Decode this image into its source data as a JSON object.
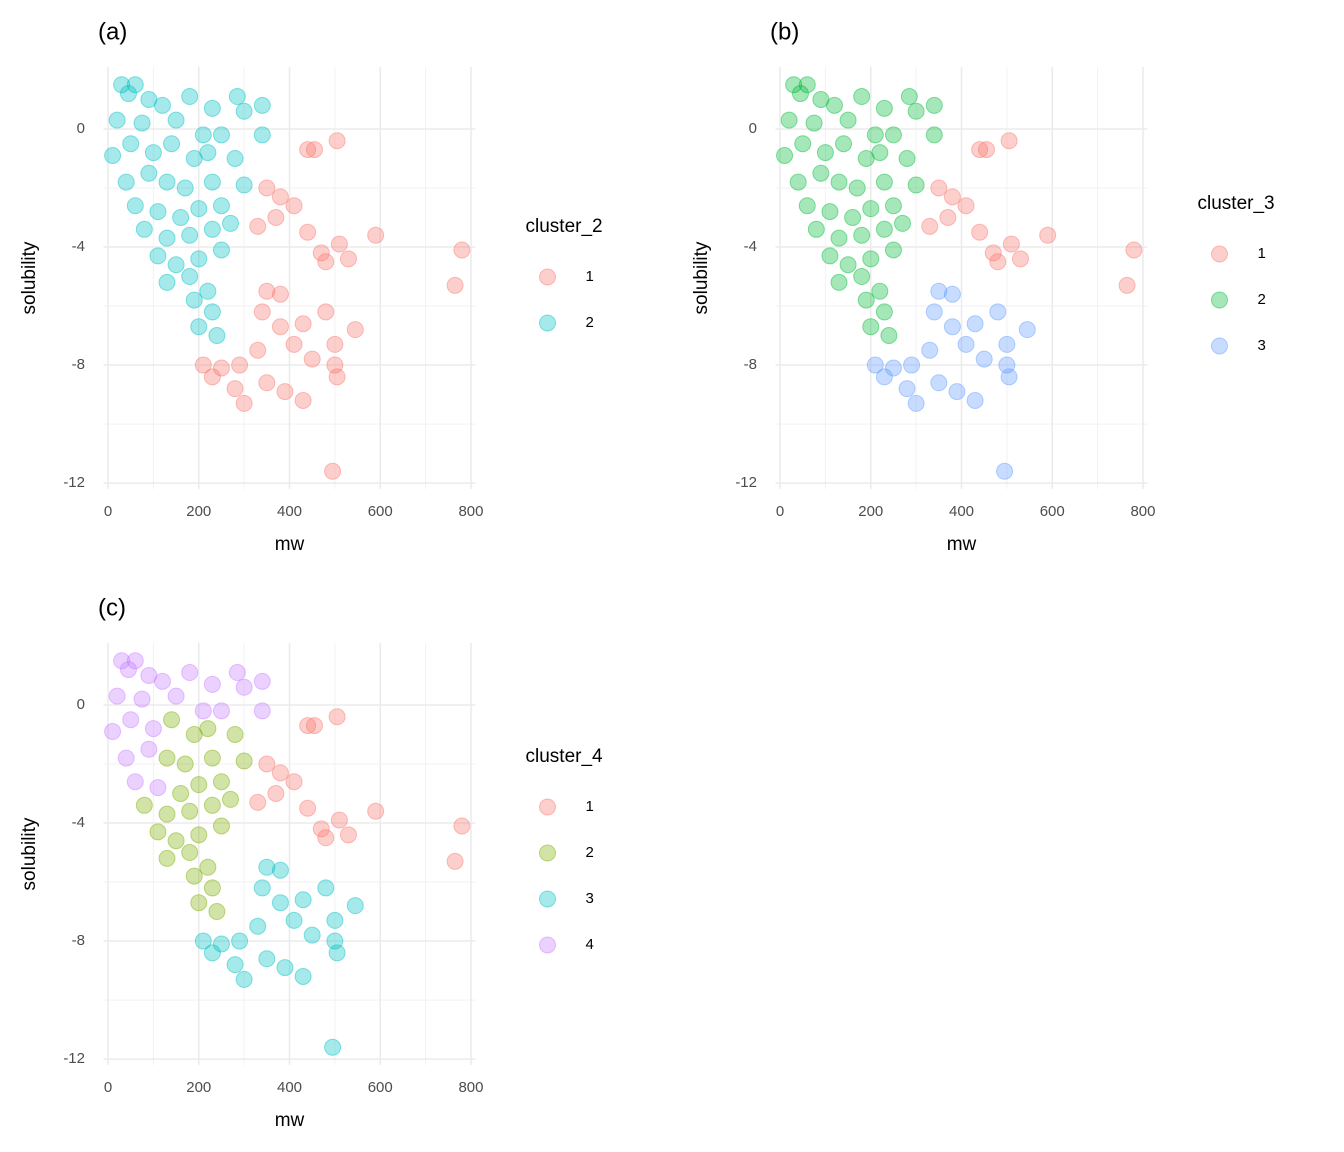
{
  "chart_data": [
    {
      "type": "scatter",
      "title": "(a)",
      "x_label": "mw",
      "y_label": "solubility",
      "legend_title": "cluster_2",
      "xlim": [
        -10,
        810
      ],
      "ylim": [
        -12.2,
        2.1
      ],
      "xticks": [
        0,
        200,
        400,
        600,
        800
      ],
      "yticks": [
        0,
        -4,
        -8,
        -12
      ],
      "grid": true,
      "series": [
        {
          "name": "1",
          "color": "#F8766D",
          "x": [
            330,
            370,
            350,
            380,
            410,
            440,
            470,
            510,
            480,
            530,
            590,
            780,
            765,
            440,
            455,
            505,
            350,
            380,
            480,
            340,
            380,
            430,
            410,
            500,
            545,
            330,
            290,
            210,
            230,
            250,
            280,
            300,
            350,
            390,
            430,
            500,
            505,
            450,
            495
          ],
          "y": [
            -3.3,
            -3.0,
            -2.0,
            -2.3,
            -2.6,
            -3.5,
            -4.2,
            -3.9,
            -4.5,
            -4.4,
            -3.6,
            -4.1,
            -5.3,
            -0.7,
            -0.7,
            -0.4,
            -5.5,
            -5.6,
            -6.2,
            -6.2,
            -6.7,
            -6.6,
            -7.3,
            -7.3,
            -6.8,
            -7.5,
            -8.0,
            -8.0,
            -8.4,
            -8.1,
            -8.8,
            -9.3,
            -8.6,
            -8.9,
            -9.2,
            -8.0,
            -8.4,
            -7.8,
            -11.6
          ]
        },
        {
          "name": "2",
          "color": "#00BFC4",
          "x": [
            30,
            60,
            45,
            90,
            120,
            20,
            75,
            10,
            50,
            100,
            40,
            90,
            60,
            110,
            180,
            230,
            285,
            340,
            300,
            150,
            210,
            340,
            250,
            140,
            190,
            220,
            280,
            130,
            170,
            230,
            300,
            160,
            200,
            250,
            80,
            130,
            180,
            230,
            270,
            110,
            150,
            200,
            250,
            130,
            180,
            220,
            190,
            230,
            200,
            240
          ],
          "y": [
            1.5,
            1.5,
            1.2,
            1.0,
            0.8,
            0.3,
            0.2,
            -0.9,
            -0.5,
            -0.8,
            -1.8,
            -1.5,
            -2.6,
            -2.8,
            1.1,
            0.7,
            1.1,
            0.8,
            0.6,
            0.3,
            -0.2,
            -0.2,
            -0.2,
            -0.5,
            -1.0,
            -0.8,
            -1.0,
            -1.8,
            -2.0,
            -1.8,
            -1.9,
            -3.0,
            -2.7,
            -2.6,
            -3.4,
            -3.7,
            -3.6,
            -3.4,
            -3.2,
            -4.3,
            -4.6,
            -4.4,
            -4.1,
            -5.2,
            -5.0,
            -5.5,
            -5.8,
            -6.2,
            -6.7,
            -7.0
          ]
        }
      ]
    },
    {
      "type": "scatter",
      "title": "(b)",
      "x_label": "mw",
      "y_label": "solubility",
      "legend_title": "cluster_3",
      "xlim": [
        -10,
        810
      ],
      "ylim": [
        -12.2,
        2.1
      ],
      "xticks": [
        0,
        200,
        400,
        600,
        800
      ],
      "yticks": [
        0,
        -4,
        -8,
        -12
      ],
      "grid": true,
      "series": [
        {
          "name": "1",
          "color": "#F8766D",
          "x": [
            330,
            370,
            350,
            380,
            410,
            440,
            470,
            510,
            480,
            530,
            590,
            780,
            765,
            440,
            455,
            505
          ],
          "y": [
            -3.3,
            -3.0,
            -2.0,
            -2.3,
            -2.6,
            -3.5,
            -4.2,
            -3.9,
            -4.5,
            -4.4,
            -3.6,
            -4.1,
            -5.3,
            -0.7,
            -0.7,
            -0.4
          ]
        },
        {
          "name": "2",
          "color": "#00BA38",
          "x": [
            30,
            60,
            45,
            90,
            120,
            20,
            75,
            10,
            50,
            100,
            40,
            90,
            60,
            110,
            180,
            230,
            285,
            340,
            300,
            150,
            210,
            340,
            250,
            140,
            190,
            220,
            280,
            130,
            170,
            230,
            300,
            160,
            200,
            250,
            80,
            130,
            180,
            230,
            270,
            110,
            150,
            200,
            250,
            130,
            180,
            220,
            190,
            230,
            200,
            240
          ],
          "y": [
            1.5,
            1.5,
            1.2,
            1.0,
            0.8,
            0.3,
            0.2,
            -0.9,
            -0.5,
            -0.8,
            -1.8,
            -1.5,
            -2.6,
            -2.8,
            1.1,
            0.7,
            1.1,
            0.8,
            0.6,
            0.3,
            -0.2,
            -0.2,
            -0.2,
            -0.5,
            -1.0,
            -0.8,
            -1.0,
            -1.8,
            -2.0,
            -1.8,
            -1.9,
            -3.0,
            -2.7,
            -2.6,
            -3.4,
            -3.7,
            -3.6,
            -3.4,
            -3.2,
            -4.3,
            -4.6,
            -4.4,
            -4.1,
            -5.2,
            -5.0,
            -5.5,
            -5.8,
            -6.2,
            -6.7,
            -7.0
          ]
        },
        {
          "name": "3",
          "color": "#619CFF",
          "x": [
            350,
            380,
            480,
            340,
            380,
            430,
            410,
            500,
            545,
            330,
            290,
            210,
            230,
            250,
            280,
            300,
            350,
            390,
            430,
            500,
            505,
            450,
            495
          ],
          "y": [
            -5.5,
            -5.6,
            -6.2,
            -6.2,
            -6.7,
            -6.6,
            -7.3,
            -7.3,
            -6.8,
            -7.5,
            -8.0,
            -8.0,
            -8.4,
            -8.1,
            -8.8,
            -9.3,
            -8.6,
            -8.9,
            -9.2,
            -8.0,
            -8.4,
            -7.8,
            -11.6
          ]
        }
      ]
    },
    {
      "type": "scatter",
      "title": "(c)",
      "x_label": "mw",
      "y_label": "solubility",
      "legend_title": "cluster_4",
      "xlim": [
        -10,
        810
      ],
      "ylim": [
        -12.2,
        2.1
      ],
      "xticks": [
        0,
        200,
        400,
        600,
        800
      ],
      "yticks": [
        0,
        -4,
        -8,
        -12
      ],
      "grid": true,
      "series": [
        {
          "name": "1",
          "color": "#F8766D",
          "x": [
            330,
            370,
            350,
            380,
            410,
            440,
            470,
            510,
            480,
            530,
            590,
            780,
            765,
            440,
            455,
            505
          ],
          "y": [
            -3.3,
            -3.0,
            -2.0,
            -2.3,
            -2.6,
            -3.5,
            -4.2,
            -3.9,
            -4.5,
            -4.4,
            -3.6,
            -4.1,
            -5.3,
            -0.7,
            -0.7,
            -0.4
          ]
        },
        {
          "name": "2",
          "color": "#7CAE00",
          "x": [
            140,
            190,
            220,
            280,
            130,
            170,
            230,
            300,
            160,
            200,
            250,
            80,
            130,
            180,
            230,
            270,
            110,
            150,
            200,
            250,
            130,
            180,
            220,
            190,
            230,
            200,
            240
          ],
          "y": [
            -0.5,
            -1.0,
            -0.8,
            -1.0,
            -1.8,
            -2.0,
            -1.8,
            -1.9,
            -3.0,
            -2.7,
            -2.6,
            -3.4,
            -3.7,
            -3.6,
            -3.4,
            -3.2,
            -4.3,
            -4.6,
            -4.4,
            -4.1,
            -5.2,
            -5.0,
            -5.5,
            -5.8,
            -6.2,
            -6.7,
            -7.0
          ]
        },
        {
          "name": "3",
          "color": "#00BFC4",
          "x": [
            350,
            380,
            480,
            340,
            380,
            430,
            410,
            500,
            545,
            330,
            290,
            210,
            230,
            250,
            280,
            300,
            350,
            390,
            430,
            500,
            505,
            450,
            495
          ],
          "y": [
            -5.5,
            -5.6,
            -6.2,
            -6.2,
            -6.7,
            -6.6,
            -7.3,
            -7.3,
            -6.8,
            -7.5,
            -8.0,
            -8.0,
            -8.4,
            -8.1,
            -8.8,
            -9.3,
            -8.6,
            -8.9,
            -9.2,
            -8.0,
            -8.4,
            -7.8,
            -11.6
          ]
        },
        {
          "name": "4",
          "color": "#C77CFF",
          "x": [
            30,
            60,
            45,
            90,
            120,
            20,
            75,
            10,
            50,
            100,
            40,
            90,
            60,
            110,
            180,
            230,
            285,
            340,
            300,
            150,
            210,
            340,
            250
          ],
          "y": [
            1.5,
            1.5,
            1.2,
            1.0,
            0.8,
            0.3,
            0.2,
            -0.9,
            -0.5,
            -0.8,
            -1.8,
            -1.5,
            -2.6,
            -2.8,
            1.1,
            0.7,
            1.1,
            0.8,
            0.6,
            0.3,
            -0.2,
            -0.2,
            -0.2
          ]
        }
      ]
    }
  ]
}
